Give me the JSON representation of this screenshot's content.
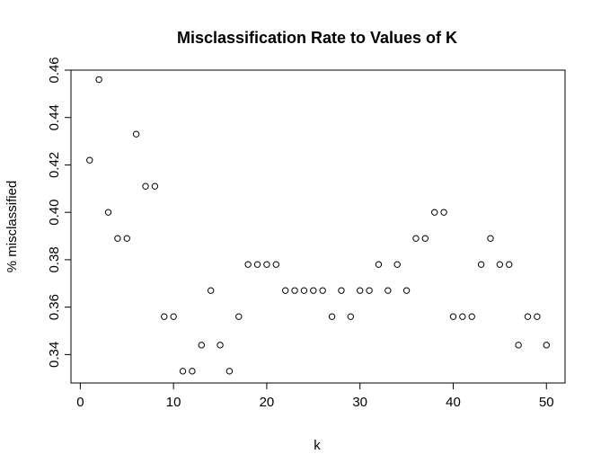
{
  "chart_data": {
    "type": "scatter",
    "title": "Misclassification Rate to Values of K",
    "xlabel": "k",
    "ylabel": "% misclassified",
    "xlim": [
      -1,
      52
    ],
    "ylim": [
      0.328,
      0.46
    ],
    "x_ticks": [
      0,
      10,
      20,
      30,
      40,
      50
    ],
    "y_ticks": [
      0.34,
      0.36,
      0.38,
      0.4,
      0.42,
      0.44,
      0.46
    ],
    "x_tick_labels": [
      "0",
      "10",
      "20",
      "30",
      "40",
      "50"
    ],
    "y_tick_labels": [
      "0.34",
      "0.36",
      "0.38",
      "0.40",
      "0.42",
      "0.44",
      "0.46"
    ],
    "grid": false,
    "marker": "open-circle",
    "x": [
      1,
      2,
      3,
      4,
      5,
      6,
      7,
      8,
      9,
      10,
      11,
      12,
      13,
      14,
      15,
      16,
      17,
      18,
      19,
      20,
      21,
      22,
      23,
      24,
      25,
      26,
      27,
      28,
      29,
      30,
      31,
      32,
      33,
      34,
      35,
      36,
      37,
      38,
      39,
      40,
      41,
      42,
      43,
      44,
      45,
      46,
      47,
      48,
      49,
      50
    ],
    "y": [
      0.422,
      0.456,
      0.4,
      0.389,
      0.389,
      0.433,
      0.411,
      0.411,
      0.356,
      0.356,
      0.333,
      0.333,
      0.344,
      0.367,
      0.344,
      0.333,
      0.356,
      0.378,
      0.378,
      0.378,
      0.378,
      0.367,
      0.367,
      0.367,
      0.367,
      0.367,
      0.356,
      0.367,
      0.356,
      0.367,
      0.367,
      0.378,
      0.367,
      0.378,
      0.367,
      0.389,
      0.389,
      0.4,
      0.4,
      0.356,
      0.356,
      0.356,
      0.378,
      0.389,
      0.378,
      0.378,
      0.344,
      0.356,
      0.356,
      0.344
    ]
  }
}
